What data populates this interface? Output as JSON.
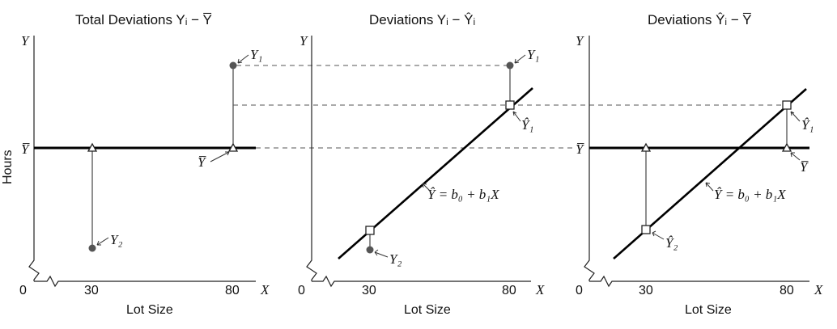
{
  "panels": [
    {
      "title": "Total Deviations Yᵢ − Y̅",
      "y_axis_letter": "Y",
      "x_axis_letter": "X",
      "origin": "0",
      "tick_30": "30",
      "tick_80": "80",
      "xlabel": "Lot Size",
      "ylabel": "Hours",
      "ybar_axis_label": "Y̅",
      "point_labels": {
        "y1": "Y₁",
        "y2": "Y₂",
        "ybar": "Y̅"
      }
    },
    {
      "title": "Deviations Yᵢ − Ŷᵢ",
      "y_axis_letter": "Y",
      "x_axis_letter": "X",
      "origin": "0",
      "tick_30": "30",
      "tick_80": "80",
      "xlabel": "Lot Size",
      "point_labels": {
        "y1": "Y₁",
        "y2": "Y₂",
        "yhat1": "Ŷ₁"
      },
      "equation": "Ŷ = b₀ + b₁X"
    },
    {
      "title": "Deviations Ŷᵢ − Y̅",
      "y_axis_letter": "Y",
      "x_axis_letter": "X",
      "origin": "0",
      "tick_30": "30",
      "tick_80": "80",
      "xlabel": "Lot Size",
      "ybar_axis_label": "Y̅",
      "point_labels": {
        "yhat1": "Ŷ₁",
        "yhat2": "Ŷ₂",
        "ybar": "Y̅"
      },
      "equation": "Ŷ = b₀ + b₁X"
    }
  ]
}
